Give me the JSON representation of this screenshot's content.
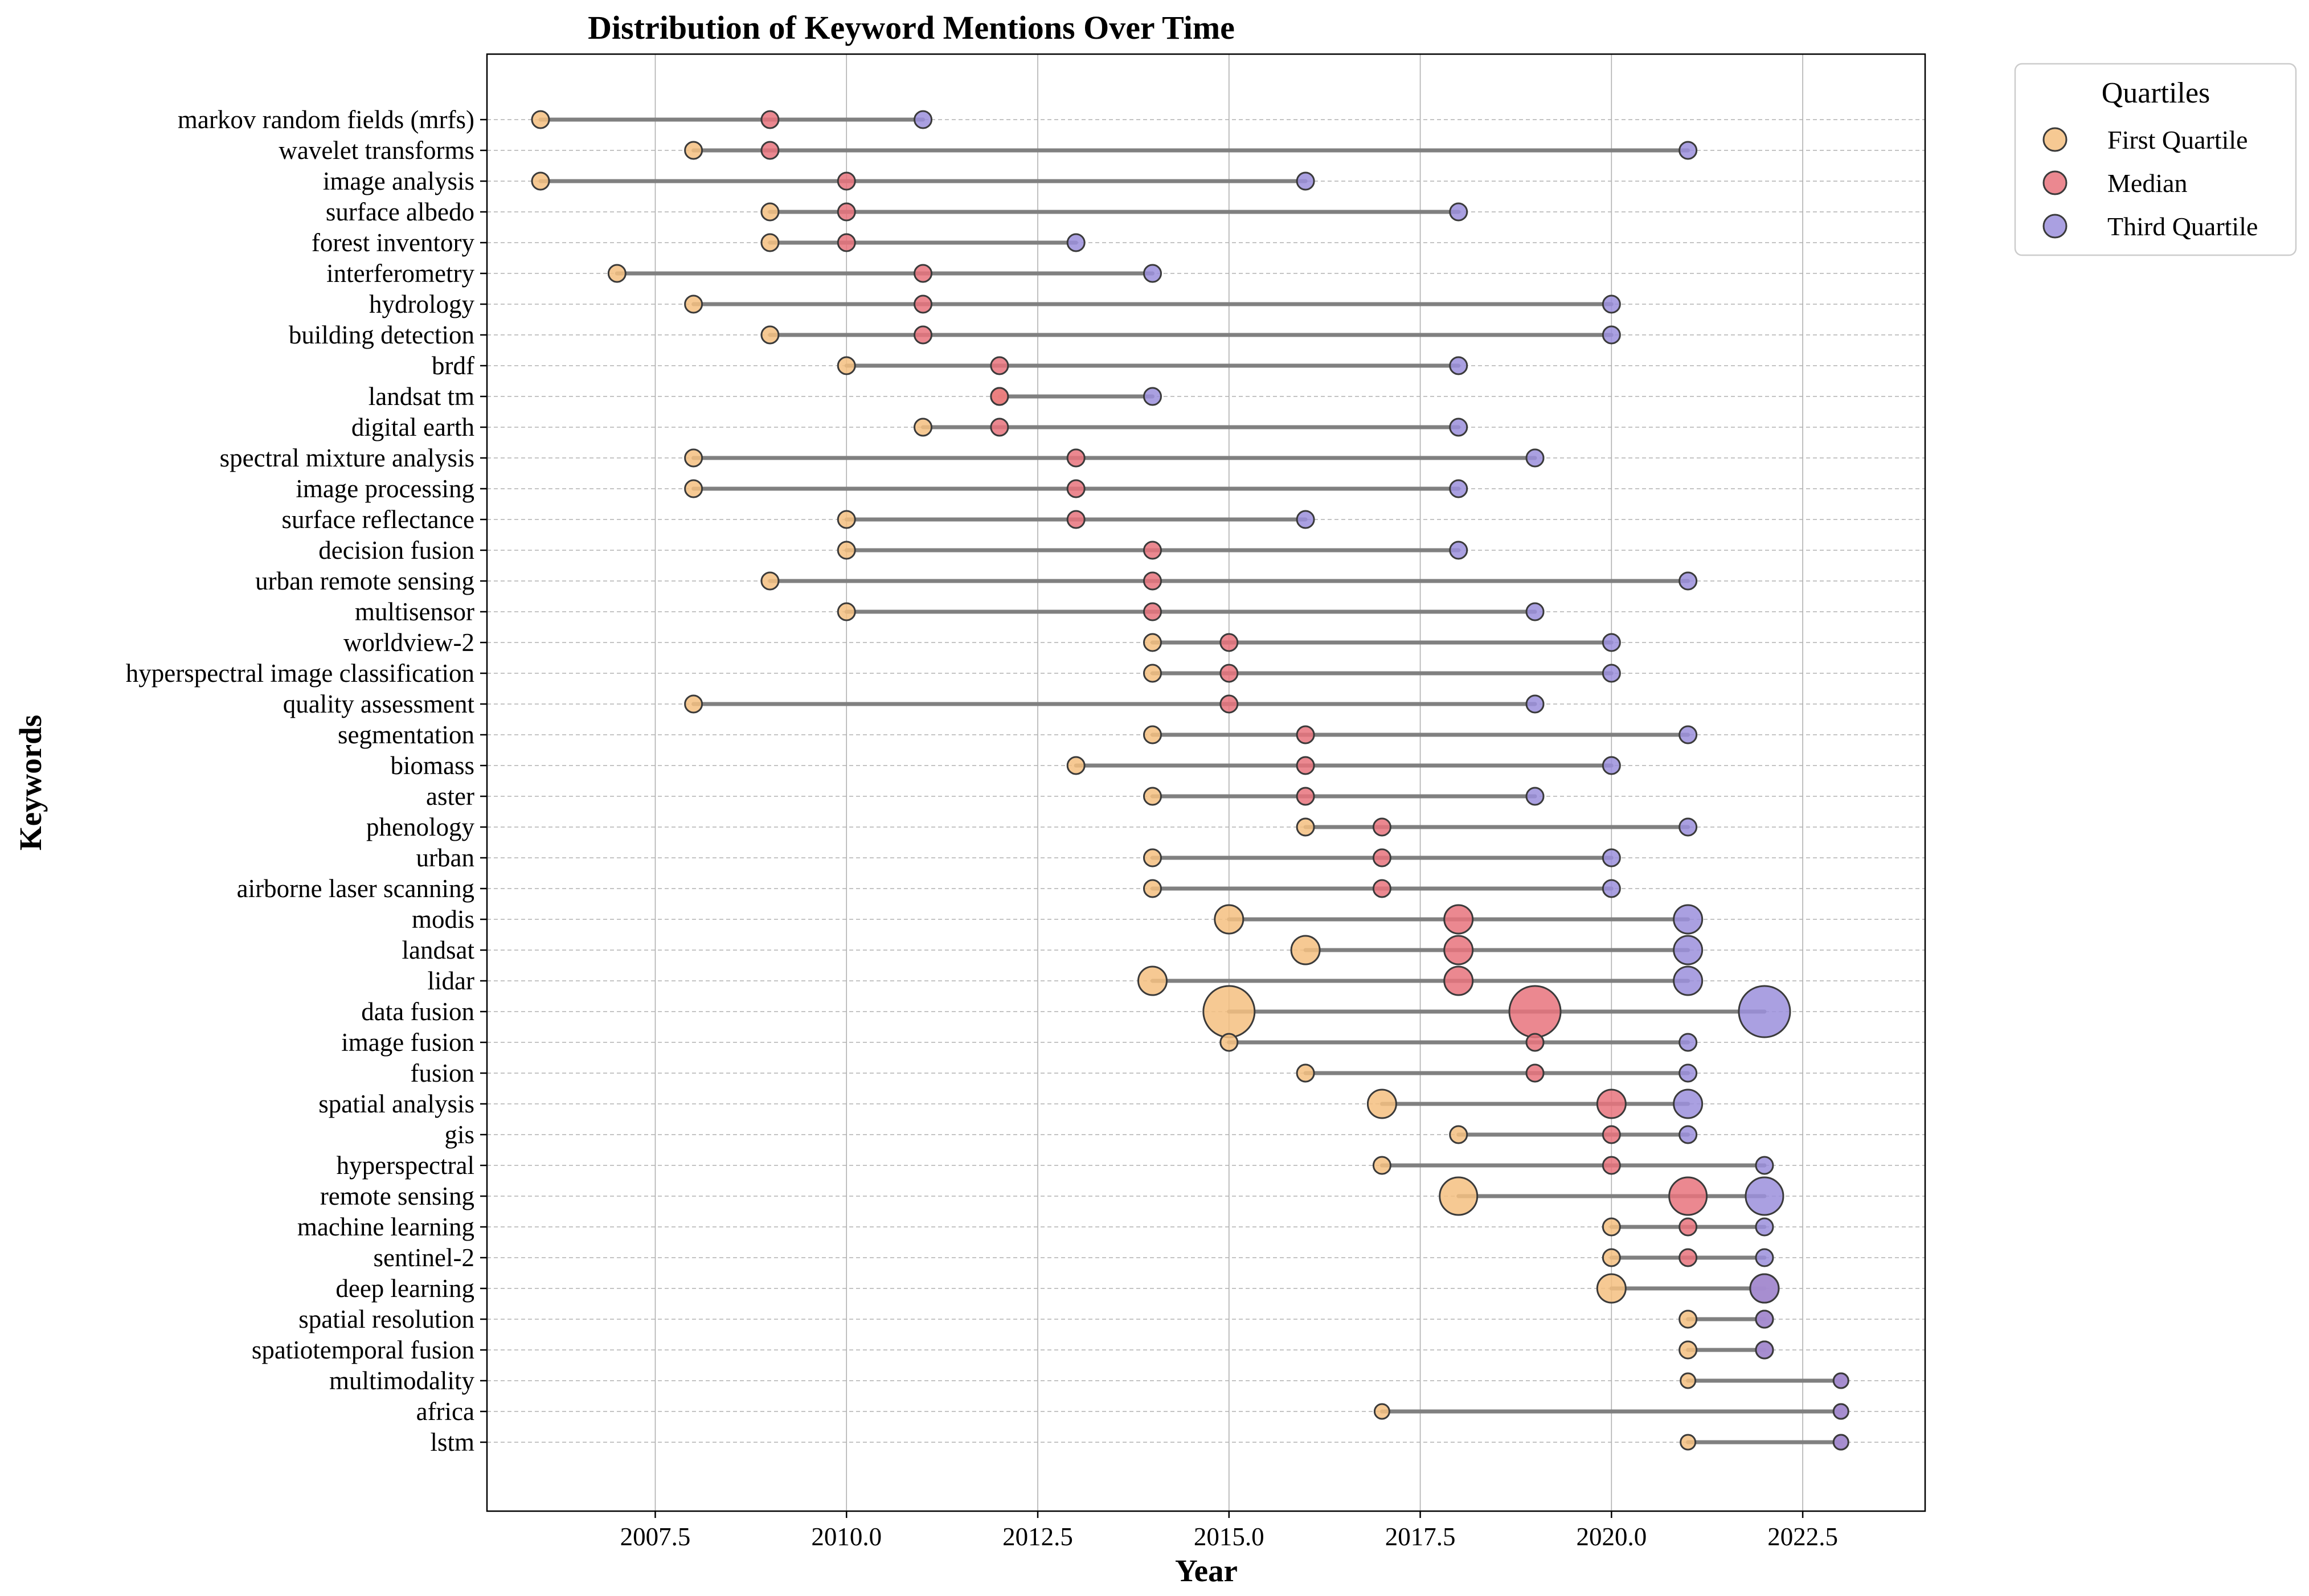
{
  "chart_data": {
    "type": "scatter",
    "subtype": "dumbbell",
    "title": "Distribution of Keyword Mentions Over Time",
    "xlabel": "Year",
    "ylabel": "Keywords",
    "xlim": [
      2005.3,
      2024.1
    ],
    "xticks": [
      2007.5,
      2010.0,
      2012.5,
      2015.0,
      2017.5,
      2020.0,
      2022.5
    ],
    "xtick_labels": [
      "2007.5",
      "2010.0",
      "2012.5",
      "2015.0",
      "2017.5",
      "2020.0",
      "2022.5"
    ],
    "grid": true,
    "legend": {
      "title": "Quartiles",
      "position": "outside-top-right",
      "entries": [
        "First Quartile",
        "Median",
        "Third Quartile"
      ]
    },
    "series_colors": {
      "First Quartile": "#f5bf80",
      "Median": "#e8737c",
      "Third Quartile": "#9b8fdc",
      "line": "#808080"
    },
    "rows": [
      {
        "keyword": "markov random fields (mrfs)",
        "q1": 2006,
        "median": 2009,
        "q3": 2011,
        "size": "small"
      },
      {
        "keyword": "wavelet transforms",
        "q1": 2008,
        "median": 2009,
        "q3": 2021,
        "size": "small"
      },
      {
        "keyword": "image analysis",
        "q1": 2006,
        "median": 2010,
        "q3": 2016,
        "size": "small"
      },
      {
        "keyword": "surface albedo",
        "q1": 2009,
        "median": 2010,
        "q3": 2018,
        "size": "small"
      },
      {
        "keyword": "forest inventory",
        "q1": 2009,
        "median": 2010,
        "q3": 2013,
        "size": "small"
      },
      {
        "keyword": "interferometry",
        "q1": 2007,
        "median": 2011,
        "q3": 2014,
        "size": "small"
      },
      {
        "keyword": "hydrology",
        "q1": 2008,
        "median": 2011,
        "q3": 2020,
        "size": "small"
      },
      {
        "keyword": "building detection",
        "q1": 2009,
        "median": 2011,
        "q3": 2020,
        "size": "small"
      },
      {
        "keyword": "brdf",
        "q1": 2010,
        "median": 2012,
        "q3": 2018,
        "size": "small"
      },
      {
        "keyword": "landsat tm",
        "q1": 2012,
        "median": 2012,
        "q3": 2014,
        "size": "small"
      },
      {
        "keyword": "digital earth",
        "q1": 2011,
        "median": 2012,
        "q3": 2018,
        "size": "small"
      },
      {
        "keyword": "spectral mixture analysis",
        "q1": 2008,
        "median": 2013,
        "q3": 2019,
        "size": "small"
      },
      {
        "keyword": "image processing",
        "q1": 2008,
        "median": 2013,
        "q3": 2018,
        "size": "small"
      },
      {
        "keyword": "surface reflectance",
        "q1": 2010,
        "median": 2013,
        "q3": 2016,
        "size": "small"
      },
      {
        "keyword": "decision fusion",
        "q1": 2010,
        "median": 2014,
        "q3": 2018,
        "size": "small"
      },
      {
        "keyword": "urban remote sensing",
        "q1": 2009,
        "median": 2014,
        "q3": 2021,
        "size": "small"
      },
      {
        "keyword": "multisensor",
        "q1": 2010,
        "median": 2014,
        "q3": 2019,
        "size": "small"
      },
      {
        "keyword": "worldview-2",
        "q1": 2014,
        "median": 2015,
        "q3": 2020,
        "size": "small"
      },
      {
        "keyword": "hyperspectral image classification",
        "q1": 2014,
        "median": 2015,
        "q3": 2020,
        "size": "small"
      },
      {
        "keyword": "quality assessment",
        "q1": 2008,
        "median": 2015,
        "q3": 2019,
        "size": "small"
      },
      {
        "keyword": "segmentation",
        "q1": 2014,
        "median": 2016,
        "q3": 2021,
        "size": "small"
      },
      {
        "keyword": "biomass",
        "q1": 2013,
        "median": 2016,
        "q3": 2020,
        "size": "small"
      },
      {
        "keyword": "aster",
        "q1": 2014,
        "median": 2016,
        "q3": 2019,
        "size": "small"
      },
      {
        "keyword": "phenology",
        "q1": 2016,
        "median": 2017,
        "q3": 2021,
        "size": "small"
      },
      {
        "keyword": "urban",
        "q1": 2014,
        "median": 2017,
        "q3": 2020,
        "size": "small"
      },
      {
        "keyword": "airborne laser scanning",
        "q1": 2014,
        "median": 2017,
        "q3": 2020,
        "size": "small"
      },
      {
        "keyword": "modis",
        "q1": 2015,
        "median": 2018,
        "q3": 2021,
        "size": "medium"
      },
      {
        "keyword": "landsat",
        "q1": 2016,
        "median": 2018,
        "q3": 2021,
        "size": "medium"
      },
      {
        "keyword": "lidar",
        "q1": 2014,
        "median": 2018,
        "q3": 2021,
        "size": "medium"
      },
      {
        "keyword": "data fusion",
        "q1": 2015,
        "median": 2019,
        "q3": 2022,
        "size": "xlarge"
      },
      {
        "keyword": "image fusion",
        "q1": 2015,
        "median": 2019,
        "q3": 2021,
        "size": "small"
      },
      {
        "keyword": "fusion",
        "q1": 2016,
        "median": 2019,
        "q3": 2021,
        "size": "small"
      },
      {
        "keyword": "spatial analysis",
        "q1": 2017,
        "median": 2020,
        "q3": 2021,
        "size": "medium"
      },
      {
        "keyword": "gis",
        "q1": 2018,
        "median": 2020,
        "q3": 2021,
        "size": "small"
      },
      {
        "keyword": "hyperspectral",
        "q1": 2017,
        "median": 2020,
        "q3": 2022,
        "size": "small"
      },
      {
        "keyword": "remote sensing",
        "q1": 2018,
        "median": 2021,
        "q3": 2022,
        "size": "large"
      },
      {
        "keyword": "machine learning",
        "q1": 2020,
        "median": 2021,
        "q3": 2022,
        "size": "small"
      },
      {
        "keyword": "sentinel-2",
        "q1": 2020,
        "median": 2021,
        "q3": 2022,
        "size": "small"
      },
      {
        "keyword": "deep learning",
        "q1": 2020,
        "median": 2022,
        "q3": 2022,
        "size": "medium"
      },
      {
        "keyword": "spatial resolution",
        "q1": 2021,
        "median": 2022,
        "q3": 2022,
        "size": "small"
      },
      {
        "keyword": "spatiotemporal fusion",
        "q1": 2021,
        "median": 2022,
        "q3": 2022,
        "size": "small"
      },
      {
        "keyword": "multimodality",
        "q1": 2021,
        "median": 2023,
        "q3": 2023,
        "size": "tiny"
      },
      {
        "keyword": "africa",
        "q1": 2017,
        "median": 2023,
        "q3": 2023,
        "size": "tiny"
      },
      {
        "keyword": "lstm",
        "q1": 2021,
        "median": 2023,
        "q3": 2023,
        "size": "tiny"
      }
    ]
  }
}
